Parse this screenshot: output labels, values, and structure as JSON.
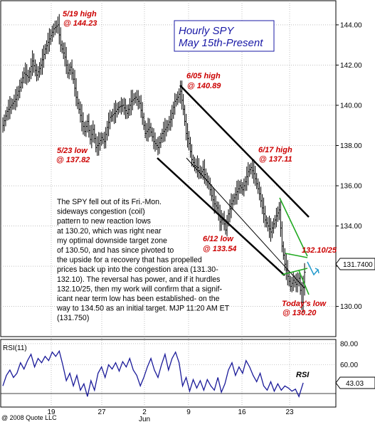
{
  "chart_data": {
    "type": "candlestick",
    "title": [
      "Hourly SPY",
      "May 15th-Present"
    ],
    "price_axis": {
      "ticks": [
        "144.00",
        "142.00",
        "140.00",
        "138.00",
        "136.00",
        "134.00",
        "132.00",
        "130.00"
      ],
      "min": 128.5,
      "max": 145.2
    },
    "rsi_axis": {
      "label": "RSI(11)",
      "ticks": [
        "80.00",
        "60.00",
        "40.00"
      ],
      "min": 20,
      "max": 84
    },
    "x_ticks": [
      "19",
      "27",
      "2",
      "9",
      "16",
      "23"
    ],
    "x_month_label": "Jun",
    "last_price_label": "131.7400",
    "last_rsi_label": "43.03",
    "copyright": "@ 2008 Quote LLC",
    "annotations": {
      "may19_high": [
        "5/19 high",
        "@ 144.23"
      ],
      "may23_low": [
        "5/23 low",
        "@ 137.82"
      ],
      "jun05_high": [
        "6/05 high",
        "@ 140.89"
      ],
      "jun17_high": [
        "6/17 high",
        "@ 137.11"
      ],
      "jun12_low": [
        "6/12 low",
        "@ 133.54"
      ],
      "level_label": "132.10/25",
      "today_low": [
        "Today's low",
        "@ 130.20"
      ],
      "rsi_label": "RSI"
    },
    "commentary": [
      "The SPY fell out of its Fri.-Mon.",
      "sideways congestion (coil)",
      "pattern to new reaction lows",
      "at 130.20, which was right near",
      "my optimal downside target zone",
      "of 130.50, and has since pivoted to",
      "the upside for a recovery that has propelled",
      "prices back up into the congestion area (131.30-",
      "132.10). The reversal has power, and if it hurdles",
      "132.10/25, then my work will confirm that a signif-",
      "icant near term low has been established- on the",
      "way to 134.50 as an initial target.  MJP  11:20 AM ET",
      "(131.750)"
    ],
    "price_path": [
      [
        0,
        139.0
      ],
      [
        6,
        139.7
      ],
      [
        12,
        140.0
      ],
      [
        18,
        140.3
      ],
      [
        24,
        140.9
      ],
      [
        30,
        141.6
      ],
      [
        36,
        141.4
      ],
      [
        42,
        142.2
      ],
      [
        48,
        141.5
      ],
      [
        54,
        142.0
      ],
      [
        60,
        142.8
      ],
      [
        66,
        143.3
      ],
      [
        72,
        143.8
      ],
      [
        78,
        144.0
      ],
      [
        82,
        143.0
      ],
      [
        88,
        142.4
      ],
      [
        92,
        141.6
      ],
      [
        96,
        141.9
      ],
      [
        100,
        141.3
      ],
      [
        104,
        140.4
      ],
      [
        108,
        139.8
      ],
      [
        112,
        139.2
      ],
      [
        116,
        138.7
      ],
      [
        120,
        139.2
      ],
      [
        124,
        138.3
      ],
      [
        128,
        138.8
      ],
      [
        132,
        137.9
      ],
      [
        136,
        138.1
      ],
      [
        140,
        138.4
      ],
      [
        144,
        138.2
      ],
      [
        148,
        138.9
      ],
      [
        152,
        139.4
      ],
      [
        158,
        139.6
      ],
      [
        164,
        139.9
      ],
      [
        170,
        140.0
      ],
      [
        176,
        139.6
      ],
      [
        182,
        140.2
      ],
      [
        188,
        140.4
      ],
      [
        194,
        140.1
      ],
      [
        198,
        139.4
      ],
      [
        202,
        138.6
      ],
      [
        208,
        138.9
      ],
      [
        214,
        138.2
      ],
      [
        220,
        137.9
      ],
      [
        226,
        138.6
      ],
      [
        232,
        138.9
      ],
      [
        238,
        139.3
      ],
      [
        244,
        140.2
      ],
      [
        248,
        140.4
      ],
      [
        252,
        140.7
      ],
      [
        256,
        139.8
      ],
      [
        260,
        138.6
      ],
      [
        264,
        138.1
      ],
      [
        268,
        137.3
      ],
      [
        272,
        137.0
      ],
      [
        276,
        136.9
      ],
      [
        280,
        136.6
      ],
      [
        284,
        136.8
      ],
      [
        288,
        136.3
      ],
      [
        292,
        136.1
      ],
      [
        296,
        135.5
      ],
      [
        300,
        135.1
      ],
      [
        304,
        134.9
      ],
      [
        308,
        134.2
      ],
      [
        312,
        134.4
      ],
      [
        316,
        133.8
      ],
      [
        320,
        134.6
      ],
      [
        324,
        135.1
      ],
      [
        328,
        135.4
      ],
      [
        332,
        135.7
      ],
      [
        336,
        136.0
      ],
      [
        340,
        135.8
      ],
      [
        344,
        136.2
      ],
      [
        348,
        136.7
      ],
      [
        352,
        136.9
      ],
      [
        356,
        136.6
      ],
      [
        360,
        136.1
      ],
      [
        364,
        135.6
      ],
      [
        368,
        134.9
      ],
      [
        372,
        134.3
      ],
      [
        376,
        134.0
      ],
      [
        380,
        133.7
      ],
      [
        384,
        134.1
      ],
      [
        388,
        134.5
      ],
      [
        392,
        134.8
      ],
      [
        396,
        133.0
      ],
      [
        400,
        132.1
      ],
      [
        404,
        131.5
      ],
      [
        408,
        131.0
      ],
      [
        412,
        131.3
      ],
      [
        416,
        131.1
      ],
      [
        420,
        131.4
      ],
      [
        424,
        130.2
      ],
      [
        428,
        131.7
      ]
    ],
    "rsi_path": [
      [
        0,
        40
      ],
      [
        5,
        50
      ],
      [
        10,
        55
      ],
      [
        15,
        48
      ],
      [
        20,
        52
      ],
      [
        25,
        62
      ],
      [
        30,
        56
      ],
      [
        35,
        64
      ],
      [
        40,
        70
      ],
      [
        45,
        58
      ],
      [
        50,
        66
      ],
      [
        55,
        62
      ],
      [
        60,
        68
      ],
      [
        65,
        64
      ],
      [
        70,
        72
      ],
      [
        75,
        68
      ],
      [
        80,
        73
      ],
      [
        85,
        60
      ],
      [
        90,
        45
      ],
      [
        95,
        52
      ],
      [
        100,
        40
      ],
      [
        105,
        50
      ],
      [
        110,
        36
      ],
      [
        115,
        42
      ],
      [
        120,
        30
      ],
      [
        125,
        45
      ],
      [
        130,
        36
      ],
      [
        135,
        52
      ],
      [
        140,
        58
      ],
      [
        145,
        48
      ],
      [
        150,
        60
      ],
      [
        155,
        56
      ],
      [
        160,
        62
      ],
      [
        165,
        54
      ],
      [
        170,
        63
      ],
      [
        175,
        58
      ],
      [
        180,
        66
      ],
      [
        185,
        55
      ],
      [
        190,
        50
      ],
      [
        195,
        40
      ],
      [
        200,
        48
      ],
      [
        205,
        58
      ],
      [
        210,
        66
      ],
      [
        215,
        55
      ],
      [
        220,
        48
      ],
      [
        225,
        60
      ],
      [
        230,
        70
      ],
      [
        235,
        55
      ],
      [
        240,
        66
      ],
      [
        245,
        72
      ],
      [
        250,
        62
      ],
      [
        255,
        40
      ],
      [
        260,
        48
      ],
      [
        265,
        35
      ],
      [
        270,
        46
      ],
      [
        275,
        38
      ],
      [
        280,
        45
      ],
      [
        285,
        36
      ],
      [
        290,
        46
      ],
      [
        295,
        40
      ],
      [
        300,
        36
      ],
      [
        305,
        48
      ],
      [
        310,
        34
      ],
      [
        315,
        42
      ],
      [
        320,
        55
      ],
      [
        325,
        62
      ],
      [
        330,
        50
      ],
      [
        335,
        58
      ],
      [
        340,
        52
      ],
      [
        345,
        64
      ],
      [
        350,
        58
      ],
      [
        355,
        50
      ],
      [
        360,
        44
      ],
      [
        365,
        52
      ],
      [
        370,
        40
      ],
      [
        375,
        36
      ],
      [
        380,
        44
      ],
      [
        385,
        35
      ],
      [
        390,
        42
      ],
      [
        395,
        36
      ],
      [
        400,
        40
      ],
      [
        405,
        38
      ],
      [
        410,
        35
      ],
      [
        415,
        37
      ],
      [
        420,
        30
      ],
      [
        426,
        43
      ]
    ]
  }
}
